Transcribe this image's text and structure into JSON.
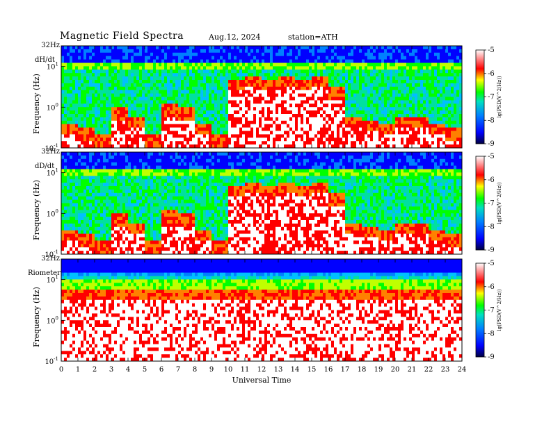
{
  "header": {
    "title": "Magnetic  Field  Spectra",
    "date": "Aug.12, 2024",
    "station": "station=ATH"
  },
  "colors": {
    "scale": [
      "#000080",
      "#0000ff",
      "#0080ff",
      "#00c0ff",
      "#00e0a0",
      "#00ff00",
      "#c0ff00",
      "#ffff00",
      "#ff8000",
      "#ff0000",
      "#ffffff"
    ]
  },
  "chart_data": [
    {
      "type": "heatmap",
      "panel_label": "dH/dt",
      "ylabel": "Frequency  (Hz)",
      "y_scale": "log",
      "ylim": [
        0.1,
        32
      ],
      "y_ticks": [
        {
          "label_base": "10",
          "label_exp": "-1",
          "value": 0.1
        },
        {
          "label_base": "10",
          "label_exp": "0",
          "value": 1
        },
        {
          "label_base": "10",
          "label_exp": "1",
          "value": 10
        }
      ],
      "y_top_label": "32Hz",
      "xlim": [
        0,
        24
      ],
      "colorbar": {
        "label": "log10(PSD(V^2/Hz))",
        "label_display": "lg(PSD(V^2/Hz))",
        "range": [
          -9,
          -5
        ],
        "ticks": [
          "-5",
          "-6",
          "-7",
          "-8",
          "-9"
        ]
      },
      "activity_peak_hz_by_hour": [
        0.2,
        0.15,
        0.1,
        0.5,
        0.3,
        0.1,
        0.6,
        0.5,
        0.2,
        0.1,
        2.5,
        3.0,
        2.5,
        3.0,
        2.5,
        3.0,
        1.5,
        0.3,
        0.25,
        0.2,
        0.3,
        0.3,
        0.2,
        0.15
      ]
    },
    {
      "type": "heatmap",
      "panel_label": "dD/dt",
      "ylabel": "Frequency  (Hz)",
      "y_scale": "log",
      "ylim": [
        0.1,
        32
      ],
      "y_ticks": [
        {
          "label_base": "10",
          "label_exp": "-1",
          "value": 0.1
        },
        {
          "label_base": "10",
          "label_exp": "0",
          "value": 1
        },
        {
          "label_base": "10",
          "label_exp": "1",
          "value": 10
        }
      ],
      "y_top_label": "32Hz",
      "xlim": [
        0,
        24
      ],
      "colorbar": {
        "label": "log10(PSD(V^2/Hz))",
        "label_display": "lg(PSD(V^2/Hz))",
        "range": [
          -9,
          -5
        ],
        "ticks": [
          "-5",
          "-6",
          "-7",
          "-8",
          "-9"
        ]
      },
      "activity_peak_hz_by_hour": [
        0.2,
        0.15,
        0.1,
        0.5,
        0.3,
        0.1,
        0.6,
        0.5,
        0.2,
        0.1,
        2.5,
        3.0,
        2.5,
        3.0,
        2.5,
        3.0,
        1.5,
        0.3,
        0.25,
        0.2,
        0.3,
        0.3,
        0.2,
        0.15
      ]
    },
    {
      "type": "heatmap",
      "panel_label": "Riometer",
      "ylabel": "Frequency  (Hz)",
      "y_scale": "log",
      "ylim": [
        0.1,
        32
      ],
      "y_ticks": [
        {
          "label_base": "10",
          "label_exp": "-1",
          "value": 0.1
        },
        {
          "label_base": "10",
          "label_exp": "0",
          "value": 1
        },
        {
          "label_base": "10",
          "label_exp": "1",
          "value": 10
        }
      ],
      "y_top_label": "32Hz",
      "xlim": [
        0,
        24
      ],
      "colorbar": {
        "label": "log10(PSD(V^2/Hz))",
        "label_display": "lg(PSD(V^2/Hz))",
        "range": [
          -9,
          -5
        ],
        "ticks": [
          "-5",
          "-6",
          "-7",
          "-8",
          "-9"
        ]
      }
    }
  ],
  "x_axis": {
    "label": "Universal  Time",
    "ticks": [
      "0",
      "1",
      "2",
      "3",
      "4",
      "5",
      "6",
      "7",
      "8",
      "9",
      "10",
      "11",
      "12",
      "13",
      "14",
      "15",
      "16",
      "17",
      "18",
      "19",
      "20",
      "21",
      "22",
      "23",
      "24"
    ]
  }
}
